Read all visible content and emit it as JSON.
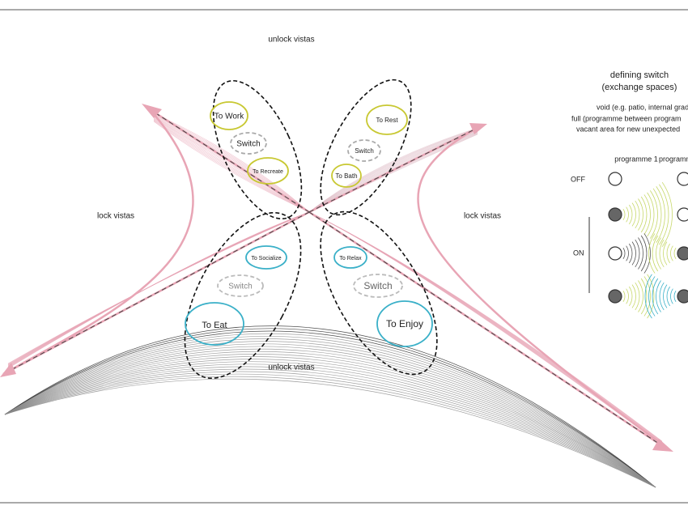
{
  "labels": {
    "unlock_top": "unlock vistas",
    "unlock_bottom": "unlock vistas",
    "lock_left": "lock vistas",
    "lock_right": "lock vistas"
  },
  "spaces": [
    "To Work",
    "Switch",
    "To Recreate",
    "To Rest",
    "Switch",
    "To Bath",
    "To Socialize",
    "To Relax",
    "Switch",
    "Switch",
    "To Eat",
    "To Enjoy"
  ],
  "legend": {
    "title": "defining switch",
    "subtitle": "(exchange spaces)",
    "notes": [
      "void (e.g. patio, internal grade",
      "full (programme between program",
      "vacant area for new unexpected"
    ],
    "programme_1": "programme 1",
    "programme_2": "programm",
    "off": "OFF",
    "on": "ON"
  }
}
